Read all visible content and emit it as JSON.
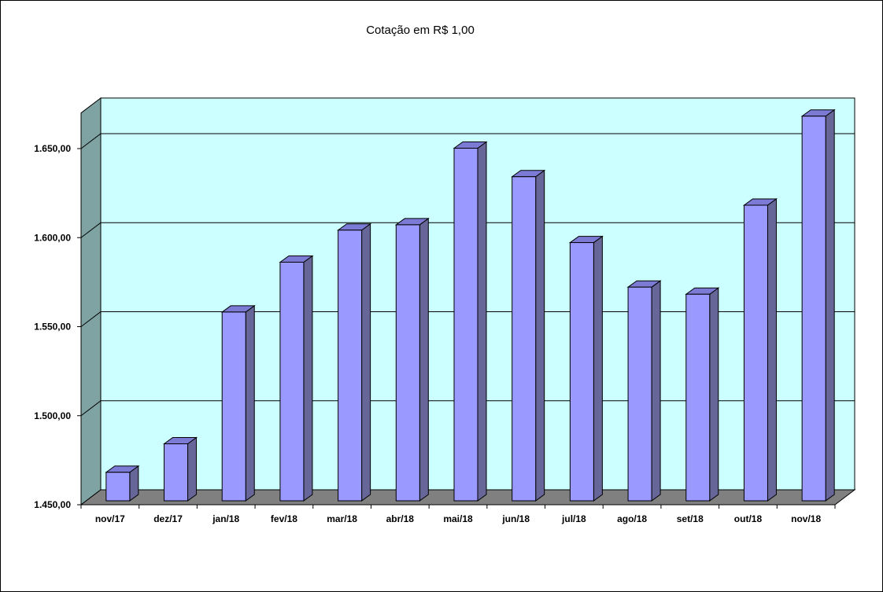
{
  "chart_data": {
    "type": "bar",
    "title": "Cotação em R$ 1,00",
    "xlabel": "",
    "ylabel": "",
    "categories": [
      "nov/17",
      "dez/17",
      "jan/18",
      "fev/18",
      "mar/18",
      "abr/18",
      "mai/18",
      "jun/18",
      "jul/18",
      "ago/18",
      "set/18",
      "out/18",
      "nov/18"
    ],
    "series": [
      {
        "values": [
          1466,
          1482,
          1556,
          1584,
          1602,
          1605,
          1648,
          1632,
          1595,
          1570,
          1566,
          1616,
          1666
        ]
      }
    ],
    "ylim": [
      1450,
      1670
    ],
    "yticks": [
      1450,
      1500,
      1550,
      1600,
      1650
    ],
    "ytick_labels": [
      "1.450,00",
      "1.500,00",
      "1.550,00",
      "1.600,00",
      "1.650,00"
    ],
    "grid": true,
    "legend": "none",
    "style": "3d",
    "colors": {
      "bar_front": "#9999ff",
      "bar_side": "#666699",
      "bar_top": "#7b7bd6",
      "back_wall": "#ccffff",
      "side_wall": "#7fa3a3",
      "floor": "#808080"
    }
  }
}
